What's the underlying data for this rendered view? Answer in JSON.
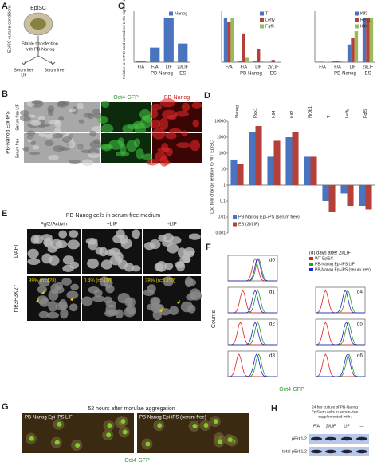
{
  "panels": {
    "A": {
      "label": "A",
      "title": "EpiSC",
      "side": "EpiSC culture conditions",
      "step": [
        "Stable transfection",
        "with PB-Nanog"
      ],
      "left": [
        "Serum free",
        "LIF"
      ],
      "right": "Serum free"
    },
    "B": {
      "label": "B",
      "col1": "Oct4-GFP",
      "col2": "PB-Nanog",
      "row_group": "PB-Nanog Epi-iPS",
      "row1": "Serum free LIF",
      "row2": "Serum free"
    },
    "C": {
      "label": "C",
      "ylabel": "Relative to GAPDH and normalized to the highest value"
    },
    "D": {
      "label": "D",
      "ylabel": "Log fold change relative to WT EpiSC"
    },
    "E": {
      "label": "E",
      "title": "PB-Nanog cells in serum-free medium",
      "cols": [
        "Fgf2/Activin",
        "+LIF",
        "-LIF"
      ],
      "rows": [
        "DAPI",
        "me3H3K27"
      ],
      "stats": [
        "89% (n=428)",
        "0.4% (n=476)",
        "28% (n=1350)"
      ]
    },
    "F": {
      "label": "F",
      "legend_title": "(d) days after 2i/LIF",
      "legend": [
        "WT EpiSC",
        "PB-Nanog Epi-iPS LIF",
        "PB-Nanog Epi-iPS (serum free)"
      ],
      "days": [
        "d0",
        "d1",
        "d2",
        "d3",
        "d4",
        "d5",
        "d6"
      ],
      "ylabel": "Counts",
      "xlabel": "Oct4-GFP"
    },
    "G": {
      "label": "G",
      "title": "52 hours after morulae aggregation",
      "left": "PB-Nanog Epi-iPS LIF",
      "right": "PB-Nanog Epi-iPS (serum free)",
      "caption": "Oct4-GFP"
    },
    "H": {
      "label": "H",
      "title": [
        "24 hrs culture of PB-Nanog",
        "EpiStem cells in serum-free",
        "supplemented with:"
      ],
      "lanes": [
        "F/A",
        "2i/LIF",
        "LIF",
        "—"
      ],
      "rows": [
        "pErk1/2",
        "total pErk1/2"
      ]
    }
  },
  "chart_data": [
    {
      "type": "bar",
      "categories": [
        "F/A",
        "F/A",
        "LIF",
        "2i/LIF"
      ],
      "group_labels": [
        "PB-Nanog",
        "ES"
      ],
      "ylim": [
        0,
        1.15
      ],
      "series": [
        {
          "name": "Nanog",
          "color": "#4a73c0",
          "values": [
            0.03,
            0.33,
            1.0,
            0.42
          ]
        }
      ]
    },
    {
      "type": "bar",
      "categories": [
        "F/A",
        "F/A",
        "LIF",
        "2i/LIF"
      ],
      "group_labels": [
        "PB-Nanog",
        "ES"
      ],
      "ylim": [
        0,
        1.15
      ],
      "series": [
        {
          "name": "T",
          "color": "#4a73c0",
          "values": [
            1.0,
            0.03,
            0.02,
            0.01
          ]
        },
        {
          "name": "Lefty",
          "color": "#b5403a",
          "values": [
            0.9,
            0.65,
            0.3,
            0.05
          ]
        },
        {
          "name": "Fgf5",
          "color": "#9bbb59",
          "values": [
            1.0,
            0.1,
            0.02,
            0.01
          ]
        }
      ]
    },
    {
      "type": "bar",
      "categories": [
        "F/A",
        "F/A",
        "LIF",
        "2i/LIF"
      ],
      "group_labels": [
        "PB-Nanog",
        "ES"
      ],
      "ylim": [
        0,
        1.15
      ],
      "series": [
        {
          "name": "Klf2",
          "color": "#4a73c0",
          "values": [
            0.01,
            0.02,
            0.4,
            1.0
          ]
        },
        {
          "name": "Rex1",
          "color": "#b5403a",
          "values": [
            0.01,
            0.02,
            0.55,
            1.0
          ]
        },
        {
          "name": "Klf4",
          "color": "#9bbb59",
          "values": [
            0.01,
            0.02,
            0.7,
            1.0
          ]
        }
      ]
    },
    {
      "type": "bar",
      "log_scale": true,
      "categories": [
        "Nanog",
        "Rex1",
        "Klf4",
        "Klf2",
        "Nr0b1",
        "T",
        "Lefty",
        "Fgf5"
      ],
      "ylim": [
        0.001,
        10000
      ],
      "yticks": [
        0.001,
        0.01,
        0.1,
        1,
        10,
        100,
        1000,
        10000
      ],
      "legend": "lower left",
      "series": [
        {
          "name": "PB-Nanog Epi-iPS (serum free)",
          "color": "#4a73c0",
          "values": [
            40,
            2000,
            60,
            1000,
            60,
            0.1,
            0.3,
            0.05
          ]
        },
        {
          "name": "ES (2i/LIF)",
          "color": "#b5403a",
          "values": [
            20,
            5000,
            600,
            2000,
            60,
            0.02,
            0.05,
            0.03
          ]
        }
      ]
    }
  ]
}
